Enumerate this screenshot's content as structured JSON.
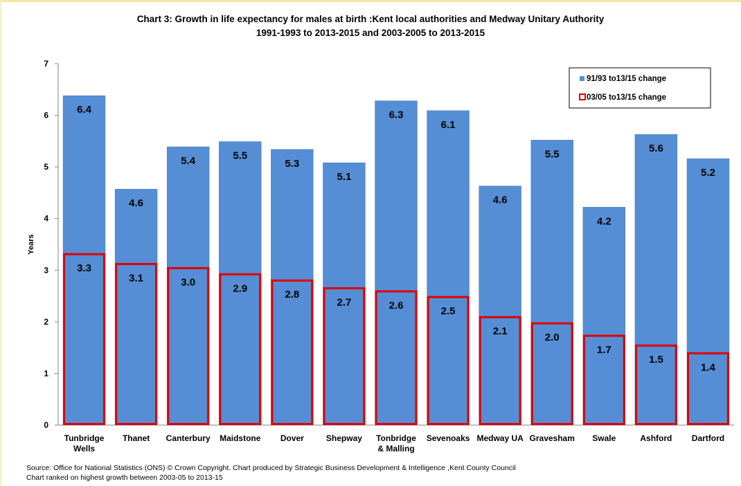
{
  "chart_data": {
    "type": "bar",
    "title": "Chart 3: Growth in life expectancy for males at birth :Kent local authorities and Medway Unitary Authority",
    "subtitle": "1991-1993 to 2013-2015 and 2003-2005 to 2013-2015",
    "ylabel": "Years",
    "xlabel": "",
    "ylim": [
      0,
      7
    ],
    "yticks": [
      "0",
      "1",
      "2",
      "3",
      "4",
      "5",
      "6",
      "7"
    ],
    "grid": false,
    "legend_position": "top-right",
    "categories": [
      [
        "Tunbridge",
        "Wells"
      ],
      [
        "Thanet"
      ],
      [
        "Canterbury"
      ],
      [
        "Maidstone"
      ],
      [
        "Dover"
      ],
      [
        "Shepway"
      ],
      [
        "Tonbridge",
        "& Malling"
      ],
      [
        "Sevenoaks"
      ],
      [
        "Medway UA"
      ],
      [
        "Gravesham"
      ],
      [
        "Swale"
      ],
      [
        "Ashford"
      ],
      [
        "Dartford"
      ]
    ],
    "series": [
      {
        "name": "91/93 to13/15 change",
        "color": "#558ed5",
        "values": [
          6.38,
          4.57,
          5.39,
          5.49,
          5.34,
          5.08,
          6.28,
          6.09,
          4.63,
          5.52,
          4.22,
          5.63,
          5.16
        ],
        "labels": [
          "6.4",
          "4.6",
          "5.4",
          "5.5",
          "5.3",
          "5.1",
          "6.3",
          "6.1",
          "4.6",
          "5.5",
          "4.2",
          "5.6",
          "5.2"
        ]
      },
      {
        "name": "03/05 to13/15 change",
        "color": "#e00000",
        "values": [
          3.31,
          3.12,
          3.04,
          2.92,
          2.8,
          2.65,
          2.59,
          2.48,
          2.09,
          1.97,
          1.73,
          1.54,
          1.39
        ],
        "labels": [
          "3.3",
          "3.1",
          "3.0",
          "2.9",
          "2.8",
          "2.7",
          "2.6",
          "2.5",
          "2.1",
          "2.0",
          "1.7",
          "1.5",
          "1.4"
        ]
      }
    ]
  },
  "footer": {
    "source": "Source: Office for National Statistics (ONS) © Crown Copyright.  Chart produced by Strategic Business  Development & Intelligence ,Kent County Council",
    "note": "Chart ranked on highest growth between 2003-05 to 2013-15"
  }
}
